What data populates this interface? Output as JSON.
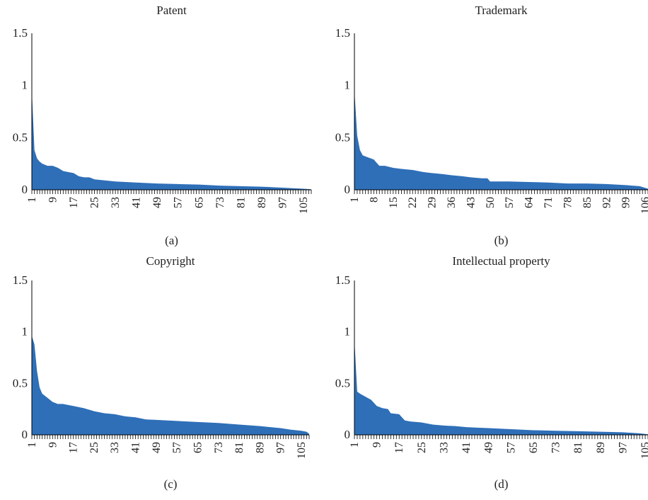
{
  "chart_data": [
    {
      "type": "area",
      "title": "Patent",
      "caption": "(a)",
      "color": "#2e6fb8",
      "yticks": [
        "0",
        "0.5",
        "1",
        "1.5"
      ],
      "ylim": [
        0,
        1.5
      ],
      "x_range": [
        1,
        108
      ],
      "xticks": [
        1,
        9,
        17,
        25,
        33,
        41,
        49,
        57,
        65,
        73,
        81,
        89,
        97,
        105
      ],
      "points": [
        [
          1,
          0.95
        ],
        [
          2,
          0.38
        ],
        [
          3,
          0.3
        ],
        [
          4,
          0.27
        ],
        [
          5,
          0.25
        ],
        [
          7,
          0.23
        ],
        [
          9,
          0.23
        ],
        [
          11,
          0.21
        ],
        [
          13,
          0.18
        ],
        [
          15,
          0.17
        ],
        [
          17,
          0.16
        ],
        [
          19,
          0.13
        ],
        [
          21,
          0.12
        ],
        [
          23,
          0.12
        ],
        [
          25,
          0.1
        ],
        [
          29,
          0.09
        ],
        [
          33,
          0.08
        ],
        [
          41,
          0.07
        ],
        [
          49,
          0.06
        ],
        [
          57,
          0.055
        ],
        [
          65,
          0.05
        ],
        [
          73,
          0.04
        ],
        [
          81,
          0.035
        ],
        [
          89,
          0.03
        ],
        [
          97,
          0.02
        ],
        [
          105,
          0.01
        ],
        [
          108,
          0.005
        ]
      ]
    },
    {
      "type": "area",
      "title": "Trademark",
      "caption": "(b)",
      "color": "#2e6fb8",
      "yticks": [
        "0",
        "0.5",
        "1",
        "1.5"
      ],
      "ylim": [
        0,
        1.5
      ],
      "x_range": [
        1,
        107
      ],
      "xticks": [
        1,
        8,
        15,
        22,
        29,
        36,
        43,
        50,
        57,
        64,
        71,
        78,
        85,
        92,
        99,
        106
      ],
      "points": [
        [
          1,
          0.95
        ],
        [
          2,
          0.52
        ],
        [
          3,
          0.38
        ],
        [
          4,
          0.33
        ],
        [
          6,
          0.31
        ],
        [
          8,
          0.29
        ],
        [
          9,
          0.26
        ],
        [
          10,
          0.23
        ],
        [
          12,
          0.23
        ],
        [
          15,
          0.21
        ],
        [
          18,
          0.2
        ],
        [
          22,
          0.19
        ],
        [
          26,
          0.17
        ],
        [
          29,
          0.16
        ],
        [
          33,
          0.15
        ],
        [
          36,
          0.14
        ],
        [
          40,
          0.13
        ],
        [
          43,
          0.12
        ],
        [
          47,
          0.11
        ],
        [
          49,
          0.11
        ],
        [
          50,
          0.08
        ],
        [
          57,
          0.08
        ],
        [
          64,
          0.075
        ],
        [
          71,
          0.07
        ],
        [
          78,
          0.06
        ],
        [
          85,
          0.06
        ],
        [
          92,
          0.055
        ],
        [
          99,
          0.045
        ],
        [
          104,
          0.035
        ],
        [
          107,
          0.01
        ]
      ]
    },
    {
      "type": "area",
      "title": "Copyright",
      "caption": "(c)",
      "color": "#2e6fb8",
      "yticks": [
        "0",
        "0.5",
        "1",
        "1.5"
      ],
      "ylim": [
        0,
        1.5
      ],
      "x_range": [
        1,
        108
      ],
      "xticks": [
        1,
        9,
        17,
        25,
        33,
        41,
        49,
        57,
        65,
        73,
        81,
        89,
        97,
        105
      ],
      "points": [
        [
          1,
          0.96
        ],
        [
          2,
          0.88
        ],
        [
          3,
          0.62
        ],
        [
          4,
          0.46
        ],
        [
          5,
          0.4
        ],
        [
          7,
          0.36
        ],
        [
          9,
          0.32
        ],
        [
          11,
          0.3
        ],
        [
          13,
          0.3
        ],
        [
          17,
          0.28
        ],
        [
          21,
          0.26
        ],
        [
          25,
          0.23
        ],
        [
          29,
          0.21
        ],
        [
          33,
          0.2
        ],
        [
          37,
          0.18
        ],
        [
          41,
          0.17
        ],
        [
          45,
          0.15
        ],
        [
          49,
          0.145
        ],
        [
          57,
          0.135
        ],
        [
          65,
          0.125
        ],
        [
          73,
          0.115
        ],
        [
          81,
          0.1
        ],
        [
          89,
          0.085
        ],
        [
          97,
          0.065
        ],
        [
          101,
          0.05
        ],
        [
          105,
          0.04
        ],
        [
          107,
          0.03
        ],
        [
          108,
          0.01
        ]
      ]
    },
    {
      "type": "area",
      "title": "Intellectual property",
      "caption": "(d)",
      "color": "#2e6fb8",
      "yticks": [
        "0",
        "0.5",
        "1",
        "1.5"
      ],
      "ylim": [
        0,
        1.5
      ],
      "x_range": [
        1,
        106
      ],
      "xticks": [
        1,
        9,
        17,
        25,
        33,
        41,
        49,
        57,
        65,
        73,
        81,
        89,
        97,
        105
      ],
      "points": [
        [
          1,
          0.92
        ],
        [
          2,
          0.42
        ],
        [
          3,
          0.4
        ],
        [
          5,
          0.37
        ],
        [
          7,
          0.34
        ],
        [
          9,
          0.28
        ],
        [
          11,
          0.26
        ],
        [
          13,
          0.25
        ],
        [
          14,
          0.21
        ],
        [
          17,
          0.2
        ],
        [
          19,
          0.14
        ],
        [
          21,
          0.13
        ],
        [
          25,
          0.12
        ],
        [
          29,
          0.1
        ],
        [
          33,
          0.09
        ],
        [
          37,
          0.085
        ],
        [
          41,
          0.075
        ],
        [
          45,
          0.07
        ],
        [
          49,
          0.065
        ],
        [
          57,
          0.055
        ],
        [
          65,
          0.045
        ],
        [
          73,
          0.04
        ],
        [
          81,
          0.035
        ],
        [
          89,
          0.03
        ],
        [
          97,
          0.025
        ],
        [
          103,
          0.015
        ],
        [
          106,
          0.005
        ]
      ]
    }
  ]
}
